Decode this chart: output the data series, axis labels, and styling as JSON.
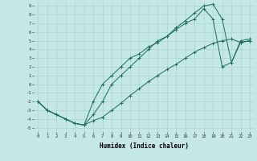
{
  "xlabel": "Humidex (Indice chaleur)",
  "bg_color": "#c5e8e5",
  "grid_color": "#a8d4d0",
  "line_color": "#1a6b5a",
  "xlim": [
    -0.5,
    23.5
  ],
  "ylim": [
    -5.5,
    9.5
  ],
  "xticks": [
    0,
    1,
    2,
    3,
    4,
    5,
    6,
    7,
    8,
    9,
    10,
    11,
    12,
    13,
    14,
    15,
    16,
    17,
    18,
    19,
    20,
    21,
    22,
    23
  ],
  "yticks": [
    -5,
    -4,
    -3,
    -2,
    -1,
    0,
    1,
    2,
    3,
    4,
    5,
    6,
    7,
    8,
    9
  ],
  "line1_x": [
    0,
    1,
    2,
    3,
    4,
    5,
    6,
    7,
    8,
    9,
    10,
    11,
    12,
    13,
    14,
    15,
    16,
    17,
    18,
    19,
    20,
    21,
    22,
    23
  ],
  "line1_y": [
    -2,
    -3,
    -3.5,
    -4,
    -4.5,
    -4.7,
    -4.2,
    -3.8,
    -3,
    -2.2,
    -1.3,
    -0.5,
    0.3,
    1,
    1.7,
    2.3,
    3,
    3.7,
    4.2,
    4.7,
    5,
    5.2,
    4.8,
    5.0
  ],
  "line2_x": [
    0,
    1,
    2,
    3,
    4,
    5,
    6,
    7,
    8,
    9,
    10,
    11,
    12,
    13,
    14,
    15,
    16,
    17,
    18,
    19,
    20,
    21,
    22,
    23
  ],
  "line2_y": [
    -2,
    -3,
    -3.5,
    -4,
    -4.5,
    -4.7,
    -3.5,
    -2,
    0,
    1,
    2,
    3,
    4,
    5,
    5.5,
    6.5,
    7.3,
    8.2,
    9,
    9.2,
    7.5,
    2.5,
    5,
    5.2
  ],
  "line3_x": [
    0,
    1,
    2,
    3,
    4,
    5,
    6,
    7,
    8,
    9,
    10,
    11,
    12,
    13,
    14,
    15,
    16,
    17,
    18,
    19,
    20,
    21,
    22,
    23
  ],
  "line3_y": [
    -2,
    -3,
    -3.5,
    -4,
    -4.5,
    -4.7,
    -2,
    0,
    1,
    2,
    3,
    3.5,
    4.3,
    4.8,
    5.5,
    6.3,
    7,
    7.5,
    8.7,
    7.5,
    2,
    2.5,
    4.8,
    5.0
  ]
}
